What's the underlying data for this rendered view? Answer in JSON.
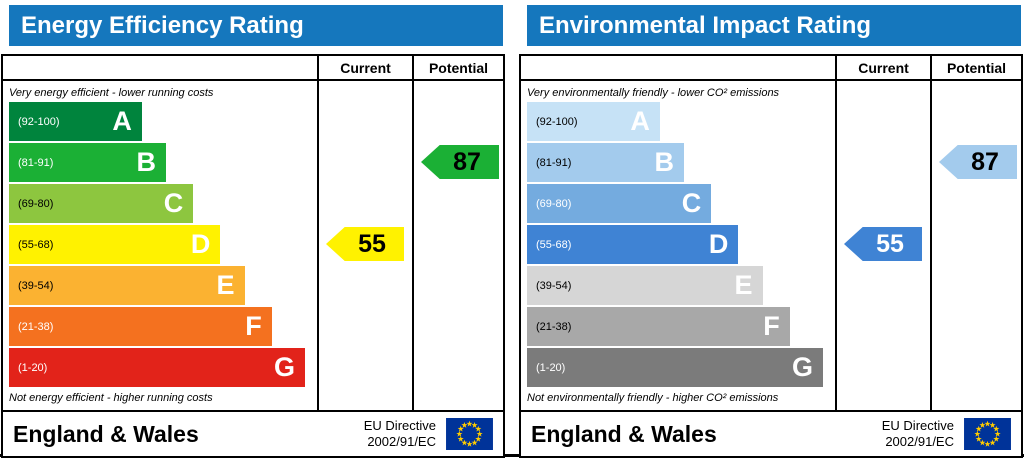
{
  "colors": {
    "header_bg": "#1577bd",
    "eu_flag_bg": "#003399",
    "eu_flag_star": "#ffcc00"
  },
  "panels": [
    {
      "title": "Energy Efficiency Rating",
      "top_note": "Very energy efficient - lower running costs",
      "bottom_note": "Not energy efficient - higher running costs",
      "columns": {
        "current": "Current",
        "potential": "Potential"
      },
      "bands": [
        {
          "label": "A",
          "range": "(92-100)",
          "color": "#00843d",
          "letter_color": "#ffffff",
          "range_color": "#ffffff",
          "width_pct": 44
        },
        {
          "label": "B",
          "range": "(81-91)",
          "color": "#1bb035",
          "letter_color": "#ffffff",
          "range_color": "#ffffff",
          "width_pct": 52
        },
        {
          "label": "C",
          "range": "(69-80)",
          "color": "#8dc63f",
          "letter_color": "#ffffff",
          "range_color": "#000000",
          "width_pct": 61
        },
        {
          "label": "D",
          "range": "(55-68)",
          "color": "#fff200",
          "letter_color": "#ffffff",
          "range_color": "#000000",
          "width_pct": 70
        },
        {
          "label": "E",
          "range": "(39-54)",
          "color": "#fbb231",
          "letter_color": "#ffffff",
          "range_color": "#000000",
          "width_pct": 78
        },
        {
          "label": "F",
          "range": "(21-38)",
          "color": "#f4711f",
          "letter_color": "#ffffff",
          "range_color": "#ffffff",
          "width_pct": 87
        },
        {
          "label": "G",
          "range": "(1-20)",
          "color": "#e2231a",
          "letter_color": "#ffffff",
          "range_color": "#ffffff",
          "width_pct": 98
        }
      ],
      "current": {
        "value": "55",
        "band_index": 3,
        "color": "#fff200",
        "text_color": "#000000"
      },
      "potential": {
        "value": "87",
        "band_index": 1,
        "color": "#1bb035",
        "text_color": "#000000"
      },
      "footer": {
        "region": "England & Wales",
        "directive_line1": "EU Directive",
        "directive_line2": "2002/91/EC"
      }
    },
    {
      "title": "Environmental Impact Rating",
      "top_note": "Very environmentally friendly - lower CO² emissions",
      "bottom_note": "Not environmentally friendly - higher CO² emissions",
      "columns": {
        "current": "Current",
        "potential": "Potential"
      },
      "bands": [
        {
          "label": "A",
          "range": "(92-100)",
          "color": "#c6e2f6",
          "letter_color": "#ffffff",
          "range_color": "#000000",
          "width_pct": 44
        },
        {
          "label": "B",
          "range": "(81-91)",
          "color": "#a3cbed",
          "letter_color": "#ffffff",
          "range_color": "#000000",
          "width_pct": 52
        },
        {
          "label": "C",
          "range": "(69-80)",
          "color": "#74abdf",
          "letter_color": "#ffffff",
          "range_color": "#ffffff",
          "width_pct": 61
        },
        {
          "label": "D",
          "range": "(55-68)",
          "color": "#3f83d4",
          "letter_color": "#ffffff",
          "range_color": "#ffffff",
          "width_pct": 70
        },
        {
          "label": "E",
          "range": "(39-54)",
          "color": "#d6d6d6",
          "letter_color": "#ffffff",
          "range_color": "#000000",
          "width_pct": 78
        },
        {
          "label": "F",
          "range": "(21-38)",
          "color": "#a8a8a8",
          "letter_color": "#ffffff",
          "range_color": "#000000",
          "width_pct": 87
        },
        {
          "label": "G",
          "range": "(1-20)",
          "color": "#7b7b7b",
          "letter_color": "#ffffff",
          "range_color": "#ffffff",
          "width_pct": 98
        }
      ],
      "current": {
        "value": "55",
        "band_index": 3,
        "color": "#3f83d4",
        "text_color": "#ffffff"
      },
      "potential": {
        "value": "87",
        "band_index": 1,
        "color": "#a3cbed",
        "text_color": "#000000"
      },
      "footer": {
        "region": "England & Wales",
        "directive_line1": "EU Directive",
        "directive_line2": "2002/91/EC"
      }
    }
  ],
  "chart_data": [
    {
      "type": "bar",
      "title": "Energy Efficiency Rating",
      "categories": [
        "A",
        "B",
        "C",
        "D",
        "E",
        "F",
        "G"
      ],
      "band_ranges": [
        [
          92,
          100
        ],
        [
          81,
          91
        ],
        [
          69,
          80
        ],
        [
          55,
          68
        ],
        [
          39,
          54
        ],
        [
          21,
          38
        ],
        [
          1,
          20
        ]
      ],
      "series": [
        {
          "name": "Current",
          "value": 55,
          "band": "D"
        },
        {
          "name": "Potential",
          "value": 87,
          "band": "B"
        }
      ],
      "annotations": [
        "Very energy efficient - lower running costs",
        "Not energy efficient - higher running costs"
      ],
      "value_range": [
        1,
        100
      ]
    },
    {
      "type": "bar",
      "title": "Environmental Impact Rating",
      "categories": [
        "A",
        "B",
        "C",
        "D",
        "E",
        "F",
        "G"
      ],
      "band_ranges": [
        [
          92,
          100
        ],
        [
          81,
          91
        ],
        [
          69,
          80
        ],
        [
          55,
          68
        ],
        [
          39,
          54
        ],
        [
          21,
          38
        ],
        [
          1,
          20
        ]
      ],
      "series": [
        {
          "name": "Current",
          "value": 55,
          "band": "D"
        },
        {
          "name": "Potential",
          "value": 87,
          "band": "B"
        }
      ],
      "annotations": [
        "Very environmentally friendly - lower CO² emissions",
        "Not environmentally friendly - higher CO² emissions"
      ],
      "value_range": [
        1,
        100
      ]
    }
  ]
}
